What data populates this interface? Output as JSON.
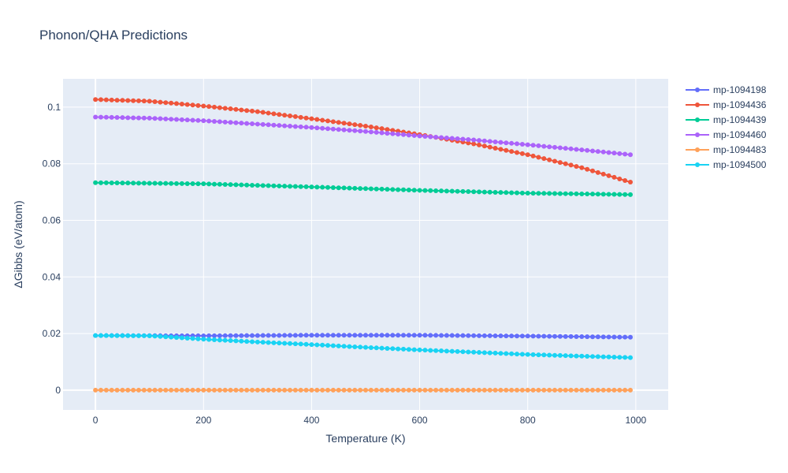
{
  "chart_data": {
    "type": "line",
    "title": "Phonon/QHA Predictions",
    "xlabel": "Temperature (K)",
    "ylabel": "ΔGibbs (eV/atom)",
    "xlim": [
      -60,
      1060
    ],
    "ylim": [
      -0.007,
      0.11
    ],
    "xticks": [
      0,
      200,
      400,
      600,
      800,
      1000
    ],
    "xtick_labels": [
      "0",
      "200",
      "400",
      "600",
      "800",
      "1000"
    ],
    "yticks": [
      0,
      0.02,
      0.04,
      0.06,
      0.08,
      0.1
    ],
    "ytick_labels": [
      "0",
      "0.02",
      "0.04",
      "0.06",
      "0.08",
      "0.1"
    ],
    "grid": true,
    "legend_position": "top-right",
    "x": {
      "start": 0,
      "stop": 990,
      "step": 10
    },
    "series": [
      {
        "name": "mp-1094198",
        "color": "#636efa",
        "anchors": [
          [
            0,
            0.0193
          ],
          [
            200,
            0.0192
          ],
          [
            400,
            0.0194
          ],
          [
            600,
            0.0194
          ],
          [
            800,
            0.0191
          ],
          [
            990,
            0.0187
          ]
        ]
      },
      {
        "name": "mp-1094436",
        "color": "#EF553B",
        "anchors": [
          [
            0,
            0.1027
          ],
          [
            100,
            0.1021
          ],
          [
            200,
            0.1004
          ],
          [
            300,
            0.0984
          ],
          [
            400,
            0.0959
          ],
          [
            500,
            0.0933
          ],
          [
            600,
            0.0903
          ],
          [
            700,
            0.087
          ],
          [
            800,
            0.0832
          ],
          [
            900,
            0.0786
          ],
          [
            990,
            0.0735
          ]
        ]
      },
      {
        "name": "mp-1094439",
        "color": "#00cc96",
        "anchors": [
          [
            0,
            0.0733
          ],
          [
            200,
            0.0729
          ],
          [
            400,
            0.0718
          ],
          [
            600,
            0.0706
          ],
          [
            800,
            0.0696
          ],
          [
            990,
            0.0691
          ]
        ]
      },
      {
        "name": "mp-1094460",
        "color": "#ab63fa",
        "anchors": [
          [
            0,
            0.0965
          ],
          [
            100,
            0.0961
          ],
          [
            200,
            0.0952
          ],
          [
            300,
            0.094
          ],
          [
            400,
            0.0928
          ],
          [
            500,
            0.0914
          ],
          [
            600,
            0.0898
          ],
          [
            700,
            0.0884
          ],
          [
            800,
            0.0867
          ],
          [
            900,
            0.0849
          ],
          [
            990,
            0.0832
          ]
        ]
      },
      {
        "name": "mp-1094483",
        "color": "#FFA15A",
        "anchors": [
          [
            0,
            0.0
          ],
          [
            990,
            0.0
          ]
        ]
      },
      {
        "name": "mp-1094500",
        "color": "#19d3f3",
        "anchors": [
          [
            0,
            0.0193
          ],
          [
            100,
            0.0192
          ],
          [
            200,
            0.018
          ],
          [
            300,
            0.017
          ],
          [
            400,
            0.0161
          ],
          [
            500,
            0.0151
          ],
          [
            600,
            0.0142
          ],
          [
            700,
            0.0134
          ],
          [
            800,
            0.0126
          ],
          [
            900,
            0.012
          ],
          [
            990,
            0.0115
          ]
        ]
      }
    ]
  }
}
